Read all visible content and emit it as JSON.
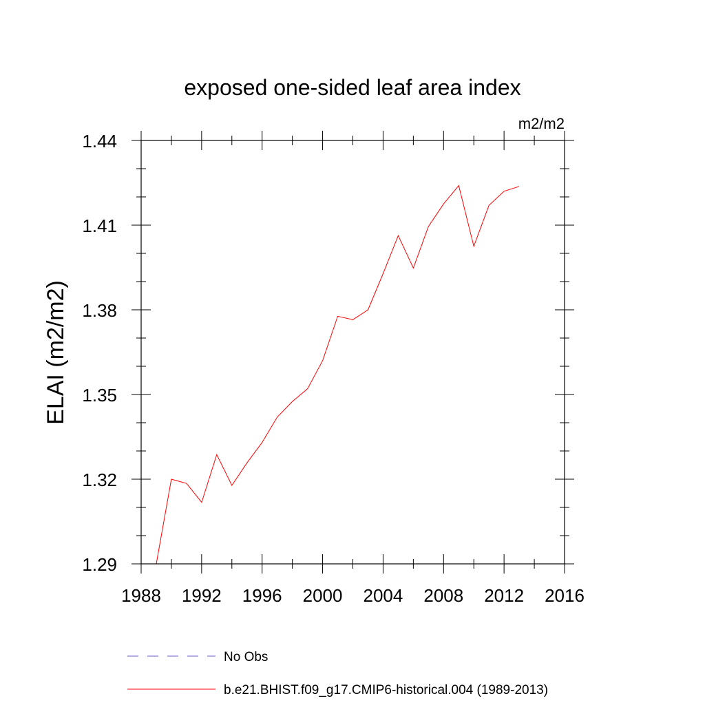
{
  "chart_data": {
    "type": "line",
    "title": "exposed one-sided leaf area index",
    "units_label": "m2/m2",
    "ylabel": "ELAI  (m2/m2)",
    "xlabel": "",
    "xlim": [
      1988,
      2016
    ],
    "ylim": [
      1.29,
      1.44
    ],
    "x_ticks": [
      1988,
      1992,
      1996,
      2000,
      2004,
      2008,
      2012,
      2016
    ],
    "x_minor_step": 2,
    "y_ticks": [
      1.29,
      1.32,
      1.35,
      1.38,
      1.41,
      1.44
    ],
    "y_tick_labels": [
      "1.29",
      "1.32",
      "1.35",
      "1.38",
      "1.41",
      "1.44"
    ],
    "y_minor_step": 0.01,
    "grid": false,
    "series": [
      {
        "name": "b.e21.BHIST.f09_g17.CMIP6-historical.004 (1989-2013)",
        "color": "#ff0000",
        "dash": "solid",
        "x": [
          1989,
          1990,
          1991,
          1992,
          1993,
          1994,
          1995,
          1996,
          1997,
          1998,
          1999,
          2000,
          2001,
          2002,
          2003,
          2004,
          2005,
          2006,
          2007,
          2008,
          2009,
          2010,
          2011,
          2012,
          2013
        ],
        "y": [
          1.29,
          1.32,
          1.3185,
          1.3118,
          1.3287,
          1.3178,
          1.3258,
          1.333,
          1.342,
          1.3475,
          1.352,
          1.362,
          1.3777,
          1.3765,
          1.38,
          1.3928,
          1.4063,
          1.3948,
          1.4095,
          1.4175,
          1.424,
          1.4025,
          1.417,
          1.422,
          1.4237
        ]
      }
    ],
    "legend": [
      {
        "label": "No Obs",
        "color": "#6a5acd",
        "dash": "dashed"
      },
      {
        "label": "b.e21.BHIST.f09_g17.CMIP6-historical.004 (1989-2013)",
        "color": "#ff0000",
        "dash": "solid"
      }
    ],
    "legend_placement": "bottom"
  }
}
